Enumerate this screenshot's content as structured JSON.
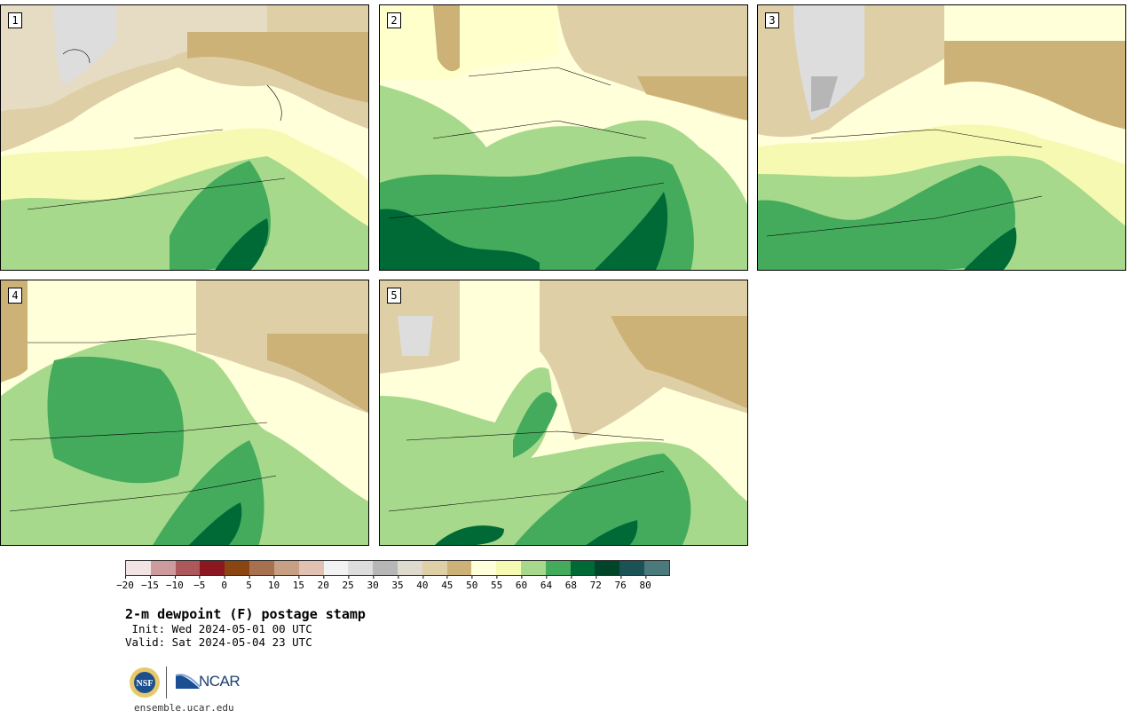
{
  "panels": [
    {
      "number": "1"
    },
    {
      "number": "2"
    },
    {
      "number": "3"
    },
    {
      "number": "4"
    },
    {
      "number": "5"
    }
  ],
  "colorbar": {
    "colors": [
      "#f2e4e4",
      "#cd9a9e",
      "#ad585a",
      "#8b1820",
      "#8b4513",
      "#a7714f",
      "#c79f83",
      "#e0c1b2",
      "#f2f2f2",
      "#dddddd",
      "#b6b6b6",
      "#dedbce",
      "#dfcfa6",
      "#cdb277",
      "#ffffd9",
      "#f6f9b2",
      "#a6d98b",
      "#44ab5c",
      "#006a37",
      "#00442a",
      "#1b5255",
      "#4a7a7b"
    ],
    "ticks": [
      "−20",
      "−15",
      "−10",
      "−5",
      "0",
      "5",
      "10",
      "15",
      "20",
      "25",
      "30",
      "35",
      "40",
      "45",
      "50",
      "55",
      "60",
      "64",
      "68",
      "72",
      "76",
      "80"
    ]
  },
  "title": "2-m dewpoint (F) postage stamp",
  "init": " Init: Wed 2024-05-01 00 UTC",
  "valid": "Valid: Sat 2024-05-04 23 UTC",
  "logos": {
    "nsf": "NSF",
    "ncar": "NCAR"
  },
  "url": "ensemble.ucar.edu"
}
